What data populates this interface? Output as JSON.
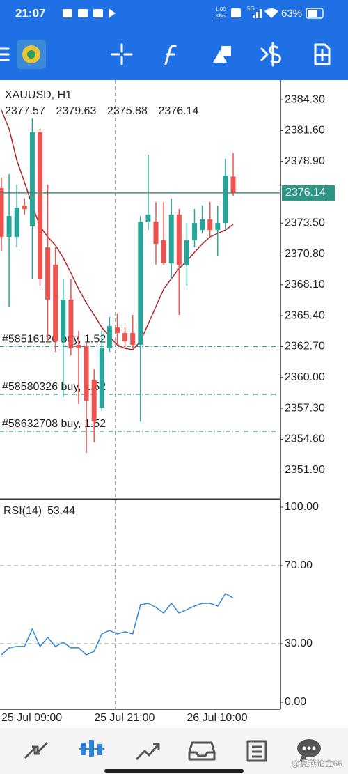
{
  "status_bar": {
    "time": "21:07",
    "speed": "1.00",
    "speed_unit": "KB/s",
    "network": "5G",
    "battery": "63%"
  },
  "watermark": "@夏燕论金66",
  "chart_data": [
    {
      "type": "candlestick",
      "title": "XAUUSD, H1",
      "categories": [
        "25 Jul 09:00",
        null,
        null,
        null,
        null,
        null,
        null,
        null,
        null,
        null,
        null,
        null,
        "25 Jul 21:00",
        null,
        null,
        null,
        null,
        null,
        null,
        null,
        null,
        null,
        null,
        null,
        "26 Jul 10:00",
        null,
        null,
        null,
        null,
        null,
        null
      ],
      "candles": [
        {
          "open": 2376.56,
          "high": 2377.47,
          "low": 2371.08,
          "close": 2372.29
        },
        {
          "open": 2372.29,
          "high": 2377.78,
          "low": 2366.2,
          "close": 2374.12
        },
        {
          "open": 2372.29,
          "high": 2376.87,
          "low": 2371.38,
          "close": 2374.85
        },
        {
          "open": 2375.04,
          "high": 2375.65,
          "low": 2374.24,
          "close": 2374.73
        },
        {
          "open": 2373.21,
          "high": 2382.66,
          "low": 2368.64,
          "close": 2381.44
        },
        {
          "open": 2381.44,
          "high": 2381.74,
          "low": 2368.03,
          "close": 2368.64
        },
        {
          "open": 2371.38,
          "high": 2376.87,
          "low": 2363.15,
          "close": 2366.81
        },
        {
          "open": 2369.86,
          "high": 2371.38,
          "low": 2362.24,
          "close": 2363.15
        },
        {
          "open": 2363.15,
          "high": 2368.64,
          "low": 2358.28,
          "close": 2366.81
        },
        {
          "open": 2366.81,
          "high": 2368.64,
          "low": 2361.93,
          "close": 2362.54
        },
        {
          "open": 2362.85,
          "high": 2364.07,
          "low": 2357.67,
          "close": 2362.54
        },
        {
          "open": 2362.73,
          "high": 2363.15,
          "low": 2353.4,
          "close": 2357.97
        },
        {
          "open": 2359.8,
          "high": 2360.72,
          "low": 2354.32,
          "close": 2356.14
        },
        {
          "open": 2357.36,
          "high": 2364.07,
          "low": 2357.06,
          "close": 2362.54
        },
        {
          "open": 2362.54,
          "high": 2365.29,
          "low": 2362.24,
          "close": 2364.49
        },
        {
          "open": 2364.37,
          "high": 2365.59,
          "low": 2362.85,
          "close": 2363.88
        },
        {
          "open": 2363.88,
          "high": 2364.37,
          "low": 2362.54,
          "close": 2363.15
        },
        {
          "open": 2363.88,
          "high": 2365.47,
          "low": 2362.54,
          "close": 2362.85
        },
        {
          "open": 2362.85,
          "high": 2374.12,
          "low": 2356.14,
          "close": 2373.63
        },
        {
          "open": 2373.63,
          "high": 2379.49,
          "low": 2372.9,
          "close": 2374.24
        },
        {
          "open": 2373.63,
          "high": 2375.34,
          "low": 2369.86,
          "close": 2371.68
        },
        {
          "open": 2371.99,
          "high": 2375.34,
          "low": 2369.86,
          "close": 2369.98
        },
        {
          "open": 2369.98,
          "high": 2375.65,
          "low": 2368.64,
          "close": 2374.24
        },
        {
          "open": 2374.24,
          "high": 2374.73,
          "low": 2365.47,
          "close": 2369.86
        },
        {
          "open": 2369.86,
          "high": 2373.51,
          "low": 2368.03,
          "close": 2371.99
        },
        {
          "open": 2371.99,
          "high": 2374.73,
          "low": 2371.38,
          "close": 2373.51
        },
        {
          "open": 2372.9,
          "high": 2375.04,
          "low": 2372.6,
          "close": 2373.82
        },
        {
          "open": 2373.82,
          "high": 2375.34,
          "low": 2372.29,
          "close": 2372.9
        },
        {
          "open": 2372.9,
          "high": 2375.04,
          "low": 2370.59,
          "close": 2373.51
        },
        {
          "open": 2373.51,
          "high": 2379.12,
          "low": 2372.9,
          "close": 2377.66
        },
        {
          "open": 2377.57,
          "high": 2379.63,
          "low": 2375.88,
          "close": 2376.14
        }
      ],
      "up_color": "#26a69a",
      "down_color": "#ef5350",
      "ma": {
        "color": "#b22222",
        "values": [
          2383.39,
          2381.74,
          2379.0,
          2377.05,
          2375.04,
          2373.21,
          2372.29,
          2371.56,
          2370.47,
          2369.13,
          2367.72,
          2366.51,
          2365.47,
          2364.37,
          2363.58,
          2362.85,
          2362.54,
          2362.42,
          2363.15,
          2364.68,
          2366.2,
          2367.72,
          2368.64,
          2369.55,
          2370.16,
          2370.95,
          2371.68,
          2372.29,
          2372.6,
          2372.9,
          2373.39
        ]
      },
      "price_line_color": "#4f8a7c",
      "price_box_color": "#2e9484",
      "orders": [
        {
          "label": "#58516126 buy, 1.52",
          "price": 2362.7
        },
        {
          "label": "#58580326 buy, 1.52",
          "price": 2358.52
        },
        {
          "label": "#58632708 buy, 1.52",
          "price": 2355.29
        }
      ],
      "order_color": "#2e9e8a",
      "ylim": [
        2349.44,
        2386.01
      ],
      "yticks": [
        {
          "value": 2384.3,
          "label": "2384.30"
        },
        {
          "value": 2381.6,
          "label": "2381.60"
        },
        {
          "value": 2378.9,
          "label": "2378.90"
        },
        {
          "value": 2373.5,
          "label": "2373.50"
        },
        {
          "value": 2370.8,
          "label": "2370.80"
        },
        {
          "value": 2368.1,
          "label": "2368.10"
        },
        {
          "value": 2365.4,
          "label": "2365.40"
        },
        {
          "value": 2362.7,
          "label": "2362.70"
        },
        {
          "value": 2360,
          "label": "2360.00"
        },
        {
          "value": 2357.3,
          "label": "2357.30"
        },
        {
          "value": 2354.6,
          "label": "2354.60"
        },
        {
          "value": 2351.9,
          "label": "2351.90"
        }
      ]
    },
    {
      "type": "line",
      "title": "RSI(14)",
      "color": "#2f86d6",
      "values": [
        24.3,
        27.9,
        28.6,
        28.6,
        37.5,
        28.6,
        33.2,
        28.6,
        30.7,
        27.9,
        27.9,
        24.3,
        26.1,
        35.0,
        36.8,
        35.0,
        36.1,
        35.0,
        50.0,
        50.7,
        48.6,
        45.7,
        50.7,
        45.7,
        47.5,
        49.3,
        50.7,
        50.7,
        49.3,
        55.7,
        53.44
      ],
      "ylim": [
        0,
        100
      ],
      "yticks": [
        {
          "value": 100,
          "label": "100.00"
        },
        {
          "value": 70,
          "label": "70.00"
        },
        {
          "value": 30,
          "label": "30.00"
        },
        {
          "value": 0,
          "label": "0.00"
        }
      ],
      "levels": [
        70,
        30
      ]
    }
  ]
}
